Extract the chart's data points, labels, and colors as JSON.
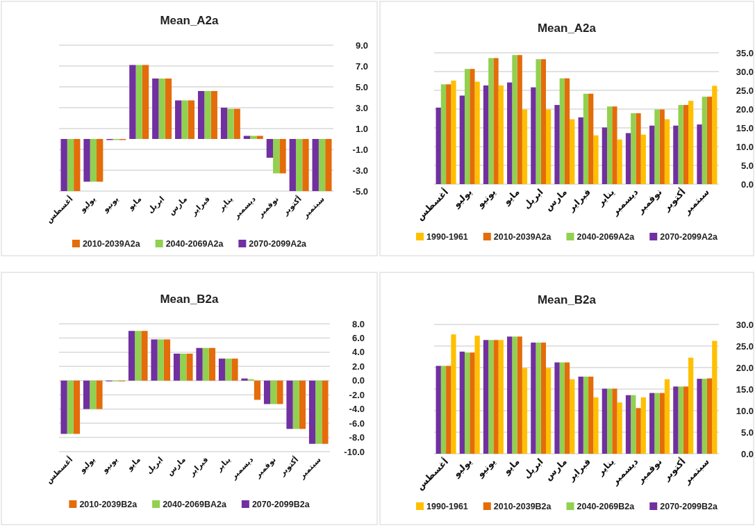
{
  "chart_data": [
    {
      "type": "bar",
      "title": "Mean_A2a",
      "categories": [
        "أغسطس",
        "يوليو",
        "يونيو",
        "مايو",
        "ابريل",
        "مارس",
        "فبراير",
        "يناير",
        "ديسمبر",
        "نوفمبر",
        "أكتوبر",
        "سبتمبر"
      ],
      "series": [
        {
          "name": "2010-2039A2a",
          "color": "#e46c0a",
          "values": [
            -5.0,
            -4.1,
            -0.1,
            7.1,
            5.8,
            3.7,
            4.6,
            2.9,
            0.3,
            -3.3,
            -5.0,
            -5.0
          ]
        },
        {
          "name": "2040-2069A2a",
          "color": "#92d050",
          "values": [
            -5.0,
            -4.1,
            -0.1,
            7.1,
            5.8,
            3.7,
            4.6,
            2.9,
            0.3,
            -3.3,
            -5.0,
            -5.0
          ]
        },
        {
          "name": "2070-2099A2a",
          "color": "#7030a0",
          "values": [
            -5.0,
            -4.1,
            -0.1,
            7.1,
            5.8,
            3.7,
            4.6,
            3.0,
            0.3,
            -1.8,
            -5.0,
            -5.0
          ]
        }
      ],
      "ylim": [
        -5,
        9
      ],
      "yticks": [
        {
          "value": -5,
          "label": "-5.0"
        },
        {
          "value": -3,
          "label": "-3.0"
        },
        {
          "value": -1,
          "label": "-1.0"
        },
        {
          "value": 1,
          "label": "1.0"
        },
        {
          "value": 3,
          "label": "3.0"
        },
        {
          "value": 5,
          "label": "5.0"
        },
        {
          "value": 7,
          "label": "7.0"
        },
        {
          "value": 9,
          "label": "9.0"
        }
      ],
      "grid": "y",
      "legend": "bottom"
    },
    {
      "type": "bar",
      "title": "Mean_A2a",
      "categories": [
        "أغسطس",
        "يوليو",
        "يونيو",
        "مايو",
        "ابريل",
        "مارس",
        "فبراير",
        "يناير",
        "ديسمبر",
        "نوفمبر",
        "أكتوبر",
        "سبتمبر"
      ],
      "series": [
        {
          "name": "1990-1961",
          "color": "#ffc000",
          "values": [
            27.6,
            27.3,
            26.3,
            19.9,
            19.9,
            17.3,
            13.0,
            11.9,
            13.2,
            17.3,
            22.2,
            26.2
          ]
        },
        {
          "name": "2010-2039A2a",
          "color": "#e46c0a",
          "values": [
            26.6,
            30.7,
            33.6,
            34.4,
            33.3,
            28.2,
            24.1,
            20.7,
            18.9,
            19.9,
            21.1,
            23.3
          ]
        },
        {
          "name": "2040-2069A2a",
          "color": "#92d050",
          "values": [
            26.6,
            30.7,
            33.6,
            34.4,
            33.3,
            28.2,
            24.1,
            20.7,
            18.9,
            19.9,
            21.1,
            23.3
          ]
        },
        {
          "name": "2070-2099A2a",
          "color": "#7030a0",
          "values": [
            20.4,
            23.6,
            26.3,
            27.1,
            25.8,
            21.1,
            17.8,
            15.1,
            13.6,
            15.6,
            15.6,
            15.9
          ]
        }
      ],
      "ylim": [
        0,
        35
      ],
      "yticks": [
        {
          "value": 0,
          "label": "0.0"
        },
        {
          "value": 5,
          "label": "5.0"
        },
        {
          "value": 10,
          "label": "10.0"
        },
        {
          "value": 15,
          "label": "15.0"
        },
        {
          "value": 20,
          "label": "20.0"
        },
        {
          "value": 25,
          "label": "25.0"
        },
        {
          "value": 30,
          "label": "30.0"
        },
        {
          "value": 35,
          "label": "35.0"
        }
      ],
      "grid": "y",
      "legend": "bottom"
    },
    {
      "type": "bar",
      "title": "Mean_B2a",
      "categories": [
        "أغسطس",
        "يوليو",
        "يونيو",
        "مايو",
        "ابريل",
        "مارس",
        "فبراير",
        "يناير",
        "ديسمبر",
        "نوفمبر",
        "أكتوبر",
        "سبتمبر"
      ],
      "series": [
        {
          "name": "2010-2039B2a",
          "color": "#e46c0a",
          "values": [
            -7.5,
            -4.0,
            -0.1,
            7.0,
            5.8,
            3.8,
            4.6,
            3.1,
            -2.7,
            -3.3,
            -6.8,
            -8.9
          ]
        },
        {
          "name": "2040-2069BA2a",
          "color": "#92d050",
          "values": [
            -7.5,
            -4.0,
            -0.1,
            7.0,
            5.8,
            3.8,
            4.6,
            3.1,
            0.2,
            -3.3,
            -6.8,
            -8.9
          ]
        },
        {
          "name": "2070-2099B2a",
          "color": "#7030a0",
          "values": [
            -7.5,
            -4.0,
            -0.1,
            7.0,
            5.8,
            3.8,
            4.6,
            3.1,
            0.3,
            -3.3,
            -6.8,
            -8.9
          ]
        }
      ],
      "ylim": [
        -10,
        8
      ],
      "yticks": [
        {
          "value": -10,
          "label": "-10.0"
        },
        {
          "value": -8,
          "label": "-8.0"
        },
        {
          "value": -6,
          "label": "-6.0"
        },
        {
          "value": -4,
          "label": "-4.0"
        },
        {
          "value": -2,
          "label": "-2.0"
        },
        {
          "value": 0,
          "label": "0.0"
        },
        {
          "value": 2,
          "label": "2.0"
        },
        {
          "value": 4,
          "label": "4.0"
        },
        {
          "value": 6,
          "label": "6.0"
        },
        {
          "value": 8,
          "label": "8.0"
        }
      ],
      "grid": "y",
      "legend": "bottom"
    },
    {
      "type": "bar",
      "title": "Mean_B2a",
      "categories": [
        "أغسطس",
        "يوليو",
        "يونيو",
        "مايو",
        "ابريل",
        "مارس",
        "فبراير",
        "يناير",
        "ديسمبر",
        "نوفمبر",
        "أكتوبر",
        "سبتمبر"
      ],
      "series": [
        {
          "name": "1990-1961",
          "color": "#ffc000",
          "values": [
            27.7,
            27.4,
            26.4,
            19.9,
            19.9,
            17.3,
            13.1,
            11.9,
            13.1,
            17.3,
            22.3,
            26.2
          ]
        },
        {
          "name": "2010-2039B2a",
          "color": "#e46c0a",
          "values": [
            20.4,
            23.5,
            26.4,
            27.2,
            25.8,
            21.2,
            17.9,
            15.1,
            10.6,
            14.1,
            15.6,
            17.5
          ]
        },
        {
          "name": "2040-2069B2a",
          "color": "#92d050",
          "values": [
            20.4,
            23.5,
            26.4,
            27.2,
            25.8,
            21.2,
            17.9,
            15.1,
            13.6,
            14.1,
            15.6,
            17.4
          ]
        },
        {
          "name": "2070-2099B2a",
          "color": "#7030a0",
          "values": [
            20.4,
            23.7,
            26.4,
            27.2,
            25.8,
            21.2,
            17.9,
            15.1,
            13.6,
            14.1,
            15.6,
            17.4
          ]
        }
      ],
      "ylim": [
        0,
        30
      ],
      "yticks": [
        {
          "value": 0,
          "label": "0.0"
        },
        {
          "value": 5,
          "label": "5.0"
        },
        {
          "value": 10,
          "label": "10.0"
        },
        {
          "value": 15,
          "label": "15.0"
        },
        {
          "value": 20,
          "label": "20.0"
        },
        {
          "value": 25,
          "label": "25.0"
        },
        {
          "value": 30,
          "label": "30.0"
        }
      ],
      "grid": "y",
      "legend": "bottom"
    }
  ]
}
